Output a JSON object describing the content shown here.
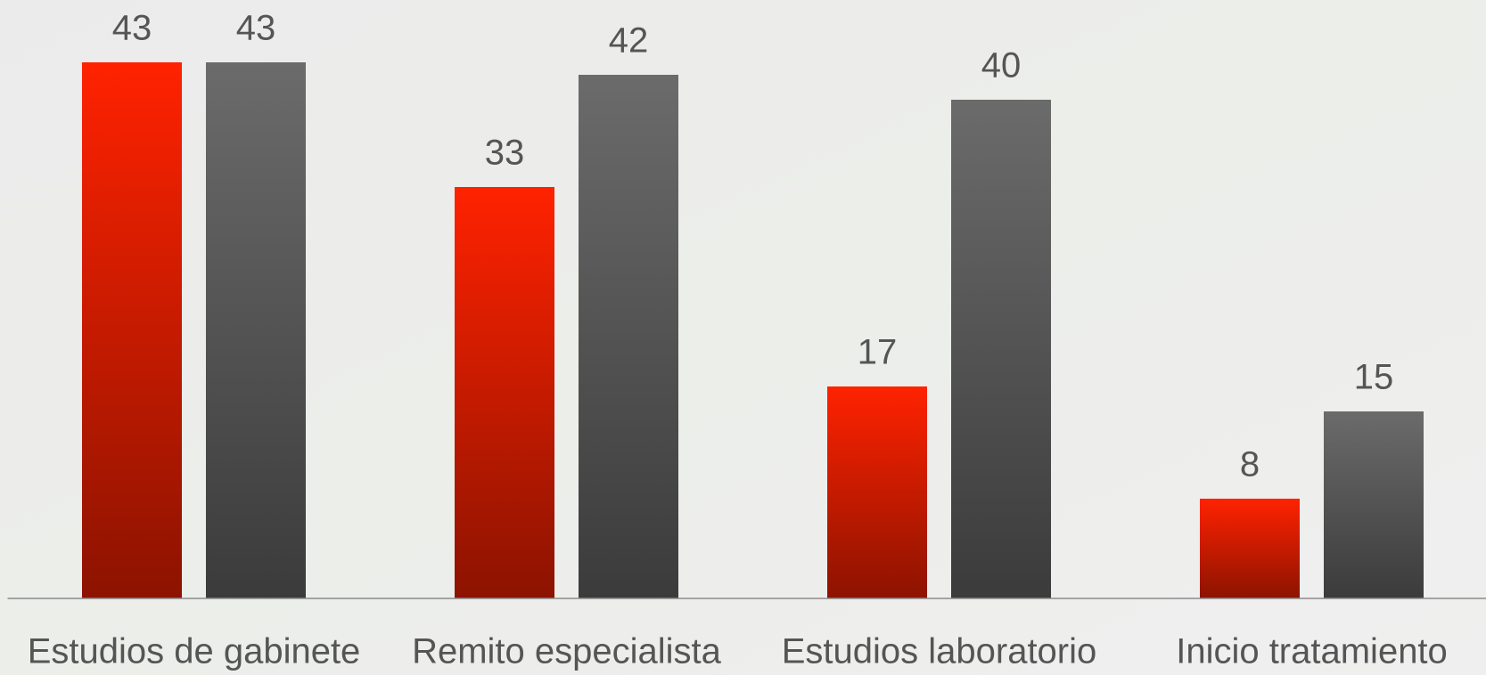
{
  "chart_data": {
    "type": "bar",
    "categories": [
      "Estudios de gabinete",
      "Remito especialista",
      "Estudios laboratorio",
      "Inicio tratamiento"
    ],
    "series": [
      {
        "color": "#ff2200",
        "values": [
          43,
          33,
          17,
          8
        ]
      },
      {
        "color": "#6b6b6b",
        "values": [
          43,
          42,
          40,
          15
        ]
      }
    ],
    "ylim": [
      0,
      48
    ],
    "grid": false
  }
}
